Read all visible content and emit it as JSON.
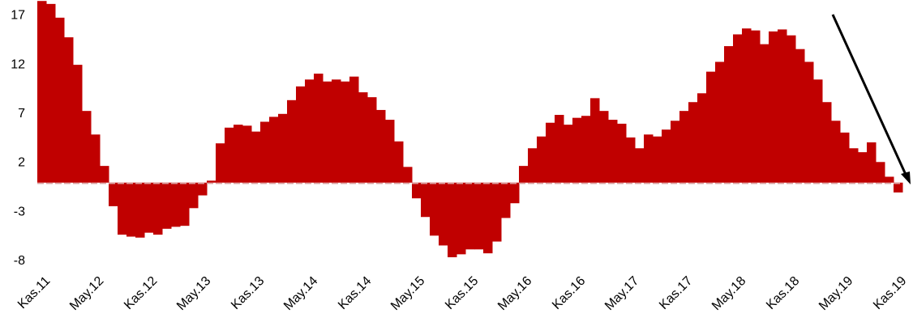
{
  "chart_data": {
    "type": "bar",
    "color": "#c00000",
    "categories": [
      "Kas.11",
      null,
      null,
      null,
      null,
      null,
      "May.12",
      null,
      null,
      null,
      null,
      null,
      "Kas.12",
      null,
      null,
      null,
      null,
      null,
      "May.13",
      null,
      null,
      null,
      null,
      null,
      "Kas.13",
      null,
      null,
      null,
      null,
      null,
      "May.14",
      null,
      null,
      null,
      null,
      null,
      "Kas.14",
      null,
      null,
      null,
      null,
      null,
      "May.15",
      null,
      null,
      null,
      null,
      null,
      "Kas.15",
      null,
      null,
      null,
      null,
      null,
      "May.16",
      null,
      null,
      null,
      null,
      null,
      "Kas.16",
      null,
      null,
      null,
      null,
      null,
      "May.17",
      null,
      null,
      null,
      null,
      null,
      "Kas.17",
      null,
      null,
      null,
      null,
      null,
      "May.18",
      null,
      null,
      null,
      null,
      null,
      "Kas.18",
      null,
      null,
      null,
      null,
      null,
      "May.19",
      null,
      null,
      null,
      null,
      null,
      "Kas.19"
    ],
    "values": [
      18.5,
      18.2,
      16.8,
      14.8,
      12.0,
      7.3,
      4.9,
      1.7,
      -2.4,
      -5.3,
      -5.5,
      -5.6,
      -5.1,
      -5.3,
      -4.7,
      -4.5,
      -4.4,
      -2.6,
      -1.3,
      0.2,
      4.0,
      5.6,
      5.9,
      5.8,
      5.2,
      6.2,
      6.7,
      7.0,
      8.4,
      9.8,
      10.5,
      11.1,
      10.3,
      10.5,
      10.3,
      10.8,
      9.2,
      8.7,
      7.4,
      6.4,
      4.2,
      1.6,
      -1.6,
      -3.5,
      -5.4,
      -6.4,
      -7.6,
      -7.3,
      -6.8,
      -6.8,
      -7.2,
      -6.0,
      -3.6,
      -2.1,
      1.7,
      3.5,
      4.7,
      6.1,
      6.9,
      5.9,
      6.6,
      6.8,
      8.6,
      7.3,
      6.4,
      6.0,
      4.6,
      3.5,
      4.9,
      4.7,
      5.4,
      6.3,
      7.3,
      8.2,
      9.1,
      11.3,
      12.3,
      13.9,
      15.1,
      15.7,
      15.5,
      14.1,
      15.4,
      15.6,
      15.0,
      13.6,
      12.3,
      10.5,
      8.2,
      6.3,
      5.1,
      3.5,
      3.1,
      4.1,
      2.1,
      0.6,
      -1.0
    ],
    "ylim": [
      -9,
      18.6
    ],
    "yticks": [
      -8,
      -3,
      2,
      7,
      12,
      17
    ],
    "grid": false
  }
}
